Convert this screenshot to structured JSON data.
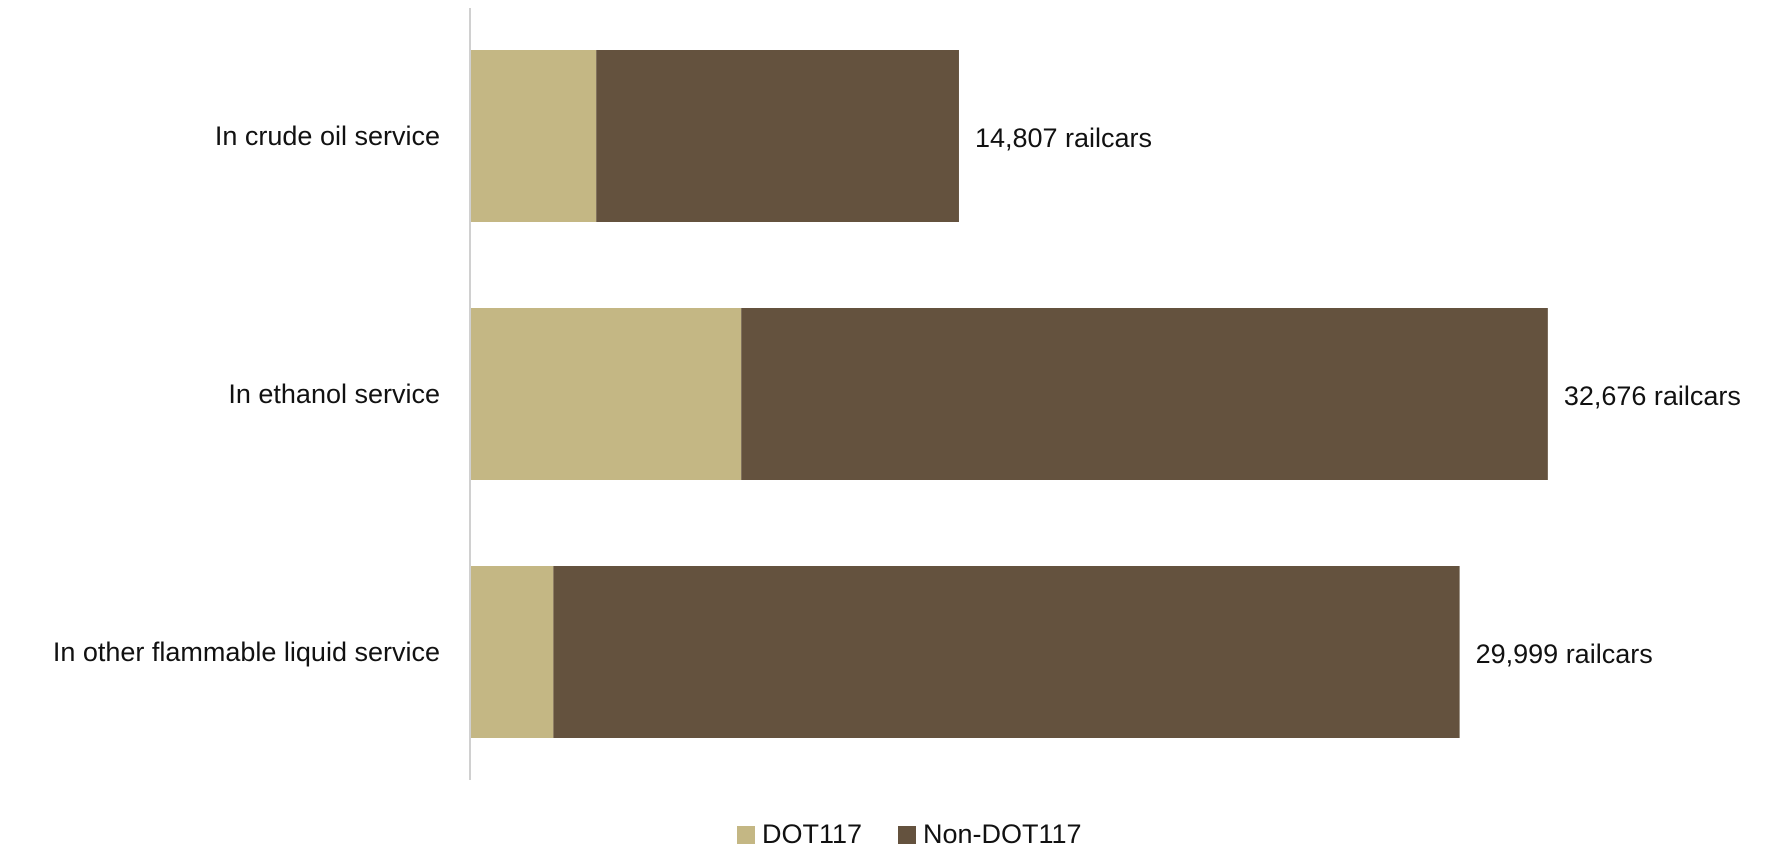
{
  "chart_data": {
    "type": "bar",
    "orientation": "horizontal",
    "stacked": true,
    "categories": [
      "In crude oil service",
      "In ethanol service",
      "In other flammable liquid service"
    ],
    "series": [
      {
        "name": "DOT117",
        "color": "#c4b784",
        "values": [
          3800,
          8200,
          2500
        ]
      },
      {
        "name": "Non-DOT117",
        "color": "#64523e",
        "values": [
          11007,
          24476,
          27499
        ]
      }
    ],
    "totals": [
      14807,
      32676,
      29999
    ],
    "total_labels": [
      "14,807 railcars",
      "32,676 railcars",
      "29,999 railcars"
    ],
    "xlim": [
      0,
      37900
    ],
    "grid": false,
    "legend": {
      "position": "bottom-center"
    }
  }
}
